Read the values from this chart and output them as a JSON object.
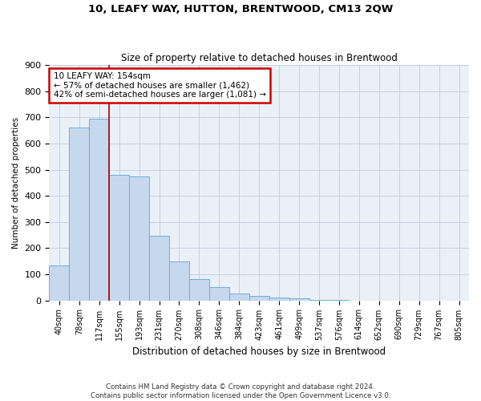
{
  "title": "10, LEAFY WAY, HUTTON, BRENTWOOD, CM13 2QW",
  "subtitle": "Size of property relative to detached houses in Brentwood",
  "xlabel": "Distribution of detached houses by size in Brentwood",
  "ylabel": "Number of detached properties",
  "bar_labels": [
    "40sqm",
    "78sqm",
    "117sqm",
    "155sqm",
    "193sqm",
    "231sqm",
    "270sqm",
    "308sqm",
    "346sqm",
    "384sqm",
    "423sqm",
    "461sqm",
    "499sqm",
    "537sqm",
    "576sqm",
    "614sqm",
    "652sqm",
    "690sqm",
    "729sqm",
    "767sqm",
    "805sqm"
  ],
  "bar_values": [
    135,
    660,
    695,
    480,
    475,
    248,
    148,
    83,
    50,
    25,
    18,
    12,
    8,
    3,
    1,
    0,
    0,
    0,
    0,
    0,
    0
  ],
  "bar_color": "#c5d8ee",
  "bar_edge_color": "#6aaddb",
  "annotation_text": "10 LEAFY WAY: 154sqm\n← 57% of detached houses are smaller (1,462)\n42% of semi-detached houses are larger (1,081) →",
  "annotation_box_color": "#ffffff",
  "annotation_box_edge": "#cc0000",
  "property_line_color": "#aa0000",
  "ylim": [
    0,
    900
  ],
  "yticks": [
    0,
    100,
    200,
    300,
    400,
    500,
    600,
    700,
    800,
    900
  ],
  "footer1": "Contains HM Land Registry data © Crown copyright and database right 2024.",
  "footer2": "Contains public sector information licensed under the Open Government Licence v3.0.",
  "bg_color": "#eaf0f8",
  "grid_color": "#c5cfe0"
}
